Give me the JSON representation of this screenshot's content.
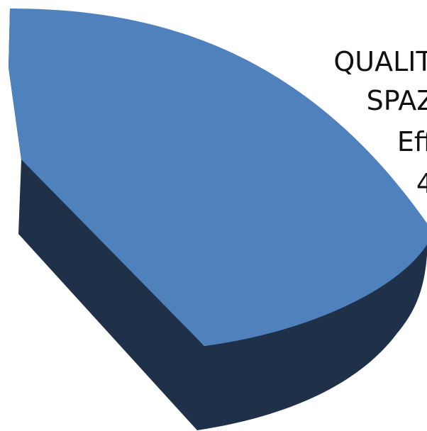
{
  "chart_data": {
    "type": "pie",
    "style": "3d",
    "title": "",
    "slices": [
      {
        "label_lines": [
          "QUALIT",
          "SPAZ",
          "Eff",
          "4"
        ],
        "color": "#4F81BD",
        "side_color": "#1F3049"
      }
    ]
  }
}
